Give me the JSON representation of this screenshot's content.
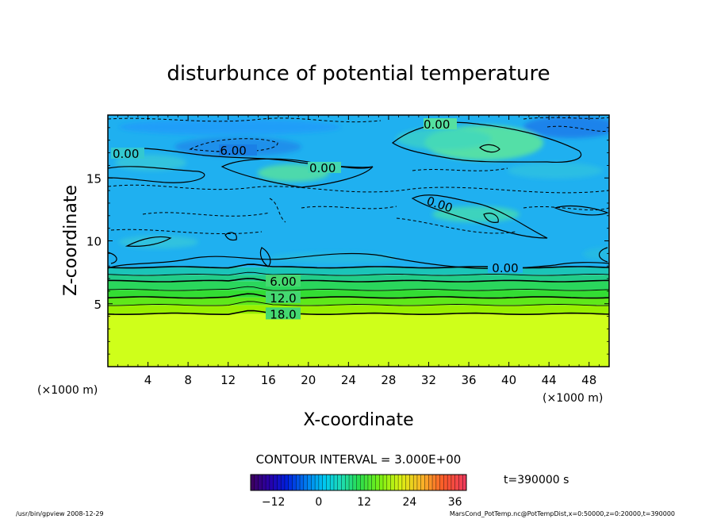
{
  "chart_data": {
    "type": "heatmap",
    "title": "disturbunce of potential temperature",
    "xlabel": "X-coordinate",
    "ylabel": "Z-coordinate",
    "x_unit": "(×1000 m)",
    "y_unit": "(×1000 m)",
    "xlim": [
      0,
      50
    ],
    "ylim": [
      0,
      20
    ],
    "x_ticks": [
      4,
      8,
      12,
      16,
      20,
      24,
      28,
      32,
      36,
      40,
      44,
      48
    ],
    "y_ticks": [
      5,
      10,
      15
    ],
    "contour_interval_label": "CONTOUR INTERVAL = 3.000E+00",
    "time_label": "t=390000 s",
    "colorbar": {
      "min": -18,
      "max": 39,
      "ticks": [
        -12,
        0,
        12,
        24,
        36
      ]
    },
    "contours": [
      {
        "value": 18.0,
        "z": 4.2,
        "label": "18.0"
      },
      {
        "value": 15.0,
        "z": 4.9,
        "label": ""
      },
      {
        "value": 12.0,
        "z": 5.5,
        "label": "12.0"
      },
      {
        "value": 9.0,
        "z": 6.1,
        "label": ""
      },
      {
        "value": 6.0,
        "z": 6.8,
        "label": "6.00"
      },
      {
        "value": 3.0,
        "z": 7.3,
        "label": ""
      },
      {
        "value": 0.0,
        "z": 7.9,
        "label": "0.00"
      }
    ],
    "inline_labels": [
      "0.00",
      "-6.00",
      "0.00",
      "0.00",
      "0.00"
    ],
    "field_bands": [
      {
        "z0": 0,
        "z1": 4.2,
        "value": 27,
        "color": "#cfff1a"
      },
      {
        "z0": 4.2,
        "z1": 4.9,
        "value": 19.5,
        "color": "#99f000"
      },
      {
        "z0": 4.9,
        "z1": 5.5,
        "value": 16.5,
        "color": "#5fe81a"
      },
      {
        "z0": 5.5,
        "z1": 6.1,
        "value": 13.5,
        "color": "#33dd33"
      },
      {
        "z0": 6.1,
        "z1": 6.8,
        "value": 10.5,
        "color": "#2ad65c"
      },
      {
        "z0": 6.8,
        "z1": 7.3,
        "value": 7.5,
        "color": "#22cc88"
      },
      {
        "z0": 7.3,
        "z1": 7.9,
        "value": 4.5,
        "color": "#1bc4b8"
      },
      {
        "z0": 7.9,
        "z1": 20,
        "value": 0,
        "color": "#1fb0f0"
      }
    ]
  },
  "footer": {
    "left": "/usr/bin/gpview   2008-12-29",
    "right": "MarsCond_PotTemp.nc@PotTempDist,x=0:50000,z=0:20000,t=390000"
  }
}
